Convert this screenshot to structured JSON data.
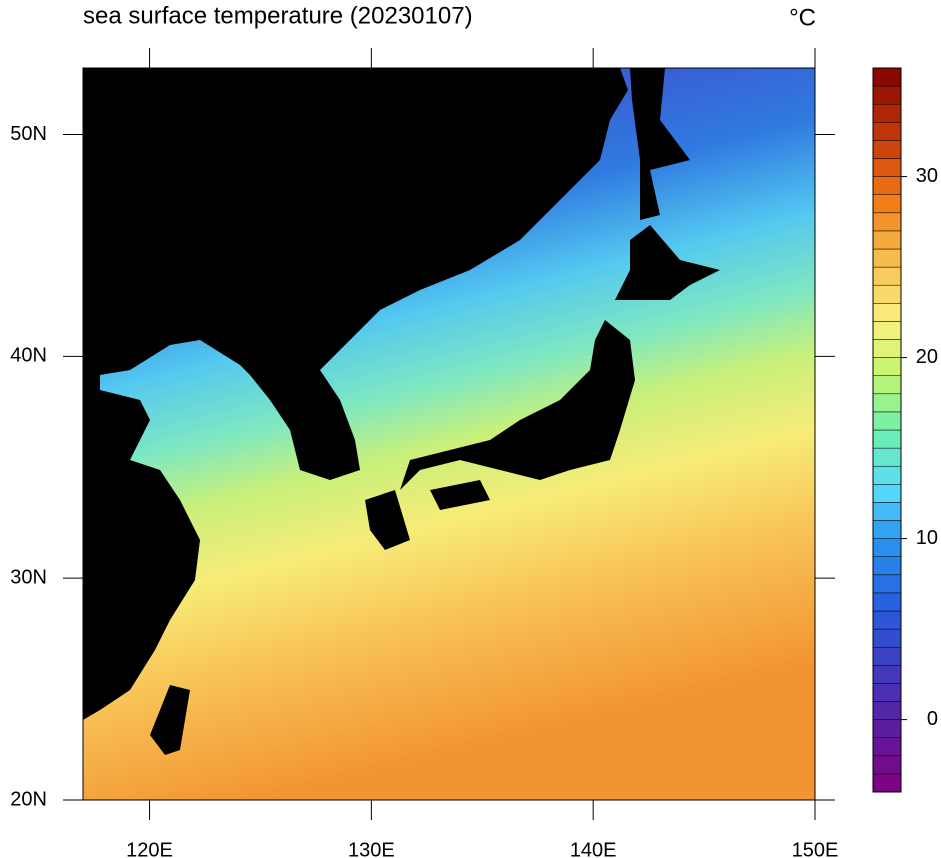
{
  "chart_data": {
    "type": "map",
    "title": "sea surface temperature (20230107)",
    "unit": "°C",
    "xlim": [
      117,
      150
    ],
    "ylim": [
      20,
      53
    ],
    "xticks": [
      {
        "value": 120,
        "label": "120E"
      },
      {
        "value": 130,
        "label": "130E"
      },
      {
        "value": 140,
        "label": "140E"
      },
      {
        "value": 150,
        "label": "150E"
      }
    ],
    "yticks": [
      {
        "value": 20,
        "label": "20N"
      },
      {
        "value": 30,
        "label": "30N"
      },
      {
        "value": 40,
        "label": "40N"
      },
      {
        "value": 50,
        "label": "50N"
      }
    ],
    "colorbar": {
      "clim": [
        -4,
        36
      ],
      "ticks": [
        0,
        10,
        20,
        30
      ]
    }
  }
}
